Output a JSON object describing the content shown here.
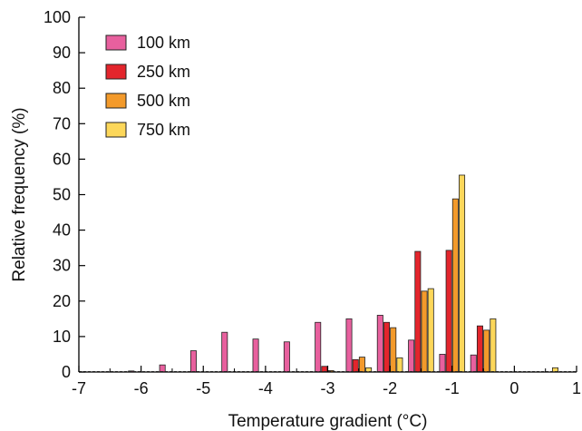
{
  "chart_data": {
    "type": "bar",
    "title": "",
    "xlabel": "Temperature gradient (°C)",
    "ylabel": "Relative frequency (%)",
    "xlim": [
      -7,
      1
    ],
    "ylim": [
      0,
      100
    ],
    "x_ticks": [
      -7,
      -6,
      -5,
      -4,
      -3,
      -2,
      -1,
      0,
      1
    ],
    "y_ticks": [
      0,
      10,
      20,
      30,
      40,
      50,
      60,
      70,
      80,
      90,
      100
    ],
    "grid": false,
    "legend_position": "top-left",
    "bins": [
      -6.0,
      -5.5,
      -5.0,
      -4.5,
      -4.0,
      -3.5,
      -3.0,
      -2.5,
      -2.0,
      -1.5,
      -1.0,
      -0.5,
      0.0,
      0.5
    ],
    "series": [
      {
        "name": "100 km",
        "color": "#e8609e",
        "values": [
          0.3,
          2,
          6,
          11.2,
          9.3,
          8.5,
          14,
          15,
          16,
          9,
          5,
          4.8,
          0,
          0
        ]
      },
      {
        "name": "250 km",
        "color": "#e3252c",
        "values": [
          0,
          0,
          0,
          0,
          0,
          0,
          1.6,
          3.5,
          14,
          34,
          34.3,
          13,
          0,
          0
        ]
      },
      {
        "name": "500 km",
        "color": "#f39a2b",
        "values": [
          0,
          0,
          0,
          0,
          0,
          0,
          0.4,
          4.2,
          12.5,
          22.8,
          48.8,
          11.8,
          0,
          0
        ]
      },
      {
        "name": "750 km",
        "color": "#fcd75a",
        "values": [
          0,
          0,
          0,
          0,
          0,
          0,
          0,
          1.2,
          4,
          23.5,
          55.5,
          15,
          0,
          1.2
        ]
      }
    ]
  }
}
